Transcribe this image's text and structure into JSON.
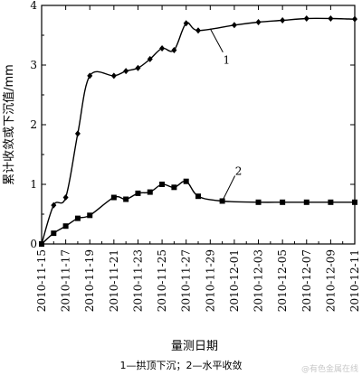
{
  "chart_data": {
    "type": "line",
    "xlabel": "量测日期",
    "ylabel": "累计收敛或下沉值/mm",
    "caption": "1—拱顶下沉；2—水平收敛",
    "watermark": "@有色金属在线",
    "ylim": [
      0,
      4
    ],
    "y_ticks": [
      0,
      1,
      2,
      3,
      4
    ],
    "x_tick_labels": [
      "2010-11-15",
      "2010-11-17",
      "2010-11-19",
      "2010-11-21",
      "2010-11-23",
      "2010-11-25",
      "2010-11-27",
      "2010-11-29",
      "2010-12-01",
      "2010-12-03",
      "2010-12-05",
      "2010-12-07",
      "2010-12-09",
      "2010-12-11"
    ],
    "x_range_days": [
      0,
      26
    ],
    "series": [
      {
        "name": "1",
        "marker": "diamond",
        "points": [
          [
            "2010-11-15",
            0.0
          ],
          [
            "2010-11-16",
            0.65
          ],
          [
            "2010-11-17",
            0.78
          ],
          [
            "2010-11-18",
            1.85
          ],
          [
            "2010-11-19",
            2.82
          ],
          [
            "2010-11-21",
            2.82
          ],
          [
            "2010-11-22",
            2.9
          ],
          [
            "2010-11-23",
            2.95
          ],
          [
            "2010-11-24",
            3.1
          ],
          [
            "2010-11-25",
            3.28
          ],
          [
            "2010-11-26",
            3.25
          ],
          [
            "2010-11-27",
            3.7
          ],
          [
            "2010-11-28",
            3.58
          ],
          [
            "2010-12-01",
            3.67
          ],
          [
            "2010-12-03",
            3.72
          ],
          [
            "2010-12-05",
            3.75
          ],
          [
            "2010-12-07",
            3.78
          ],
          [
            "2010-12-09",
            3.78
          ],
          [
            "2010-12-11",
            3.77
          ]
        ]
      },
      {
        "name": "2",
        "marker": "square",
        "points": [
          [
            "2010-11-15",
            0.0
          ],
          [
            "2010-11-16",
            0.18
          ],
          [
            "2010-11-17",
            0.3
          ],
          [
            "2010-11-18",
            0.43
          ],
          [
            "2010-11-19",
            0.48
          ],
          [
            "2010-11-21",
            0.78
          ],
          [
            "2010-11-22",
            0.75
          ],
          [
            "2010-11-23",
            0.85
          ],
          [
            "2010-11-24",
            0.87
          ],
          [
            "2010-11-25",
            1.0
          ],
          [
            "2010-11-26",
            0.95
          ],
          [
            "2010-11-27",
            1.05
          ],
          [
            "2010-11-28",
            0.8
          ],
          [
            "2010-11-30",
            0.72
          ],
          [
            "2010-12-03",
            0.7
          ],
          [
            "2010-12-05",
            0.7
          ],
          [
            "2010-12-07",
            0.7
          ],
          [
            "2010-12-09",
            0.7
          ],
          [
            "2010-12-11",
            0.7
          ]
        ]
      }
    ],
    "annotations": [
      {
        "label": "1",
        "series": "1",
        "at": "2010-11-29"
      },
      {
        "label": "2",
        "series": "2",
        "at": "2010-11-30"
      }
    ]
  }
}
